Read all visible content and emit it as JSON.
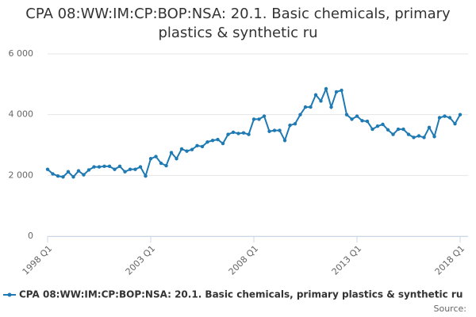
{
  "chart_data": {
    "type": "line",
    "title": "CPA 08:WW:IM:CP:BOP:NSA: 20.1. Basic chemicals, primary plastics & synthetic ru",
    "categories": [
      "1998 Q1",
      null,
      null,
      null,
      null,
      null,
      null,
      null,
      null,
      null,
      null,
      null,
      null,
      null,
      null,
      null,
      null,
      null,
      null,
      null,
      "2003 Q1",
      null,
      null,
      null,
      null,
      null,
      null,
      null,
      null,
      null,
      null,
      null,
      null,
      null,
      null,
      null,
      null,
      null,
      null,
      null,
      "2008 Q1",
      null,
      null,
      null,
      null,
      null,
      null,
      null,
      null,
      null,
      null,
      null,
      null,
      null,
      null,
      null,
      null,
      null,
      null,
      null,
      "2013 Q1",
      null,
      null,
      null,
      null,
      null,
      null,
      null,
      null,
      null,
      null,
      null,
      null,
      null,
      null,
      null,
      null,
      null,
      null,
      null,
      "2018 Q1"
    ],
    "series": [
      {
        "name": "CPA 08:WW:IM:CP:BOP:NSA: 20.1. Basic chemicals, primary plastics & synthetic ru",
        "color": "#1f7ab3",
        "values": [
          2200,
          2050,
          1980,
          1950,
          2120,
          1950,
          2150,
          2020,
          2180,
          2280,
          2280,
          2300,
          2300,
          2200,
          2300,
          2120,
          2200,
          2200,
          2280,
          1980,
          2550,
          2620,
          2400,
          2320,
          2750,
          2550,
          2870,
          2800,
          2850,
          2980,
          2950,
          3100,
          3150,
          3180,
          3050,
          3350,
          3420,
          3380,
          3400,
          3350,
          3850,
          3850,
          3950,
          3450,
          3480,
          3480,
          3150,
          3650,
          3700,
          4000,
          4250,
          4250,
          4650,
          4450,
          4850,
          4250,
          4750,
          4800,
          4000,
          3850,
          3950,
          3800,
          3780,
          3520,
          3620,
          3680,
          3500,
          3350,
          3520,
          3520,
          3350,
          3250,
          3300,
          3250,
          3580,
          3280,
          3900,
          3950,
          3900,
          3700,
          4000
        ]
      }
    ],
    "ylim": [
      0,
      6000
    ],
    "yticks": [
      0,
      {
        "value": 2000,
        "label": "2 000"
      },
      {
        "value": 4000,
        "label": "4 000"
      },
      {
        "value": 6000,
        "label": "6 000"
      }
    ],
    "grid": true,
    "source": "Source:"
  }
}
